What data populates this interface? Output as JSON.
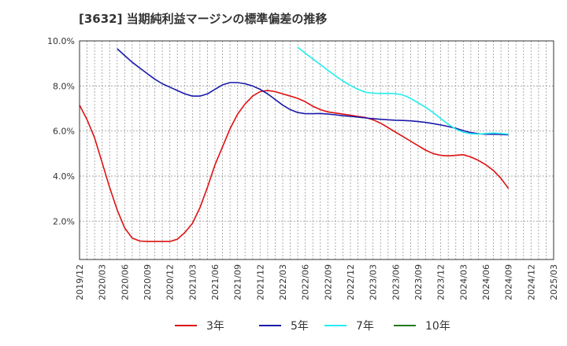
{
  "chart_data": {
    "type": "line",
    "title": "[3632]  当期純利益マージンの標準偏差の推移",
    "xlabel": "",
    "ylabel": "",
    "ylim": [
      0.3,
      10.0
    ],
    "y_ticks": [
      {
        "value": 2.0,
        "label": "2.0%"
      },
      {
        "value": 4.0,
        "label": "4.0%"
      },
      {
        "value": 6.0,
        "label": "6.0%"
      },
      {
        "value": 8.0,
        "label": "8.0%"
      },
      {
        "value": 10.0,
        "label": "10.0%"
      }
    ],
    "x_ticks": [
      "2019/12",
      "2020/03",
      "2020/06",
      "2020/09",
      "2020/12",
      "2021/03",
      "2021/06",
      "2021/09",
      "2021/12",
      "2022/03",
      "2022/06",
      "2022/09",
      "2022/12",
      "2023/03",
      "2023/06",
      "2023/09",
      "2023/12",
      "2024/03",
      "2024/06",
      "2024/09",
      "2024/12",
      "2025/03"
    ],
    "grid": true,
    "legend_position": "bottom",
    "series": [
      {
        "name": "3年",
        "color": "#dd1111",
        "points": [
          [
            "2019/12",
            7.15
          ],
          [
            "2020/01",
            6.5
          ],
          [
            "2020/02",
            5.7
          ],
          [
            "2020/03",
            4.6
          ],
          [
            "2020/04",
            3.5
          ],
          [
            "2020/05",
            2.5
          ],
          [
            "2020/06",
            1.7
          ],
          [
            "2020/07",
            1.25
          ],
          [
            "2020/08",
            1.12
          ],
          [
            "2020/09",
            1.1
          ],
          [
            "2020/10",
            1.1
          ],
          [
            "2020/11",
            1.1
          ],
          [
            "2020/12",
            1.1
          ],
          [
            "2021/01",
            1.2
          ],
          [
            "2021/02",
            1.5
          ],
          [
            "2021/03",
            1.9
          ],
          [
            "2021/04",
            2.6
          ],
          [
            "2021/05",
            3.5
          ],
          [
            "2021/06",
            4.5
          ],
          [
            "2021/07",
            5.3
          ],
          [
            "2021/08",
            6.1
          ],
          [
            "2021/09",
            6.75
          ],
          [
            "2021/10",
            7.2
          ],
          [
            "2021/11",
            7.55
          ],
          [
            "2021/12",
            7.75
          ],
          [
            "2022/01",
            7.8
          ],
          [
            "2022/02",
            7.75
          ],
          [
            "2022/03",
            7.65
          ],
          [
            "2022/04",
            7.55
          ],
          [
            "2022/05",
            7.45
          ],
          [
            "2022/06",
            7.3
          ],
          [
            "2022/07",
            7.1
          ],
          [
            "2022/08",
            6.95
          ],
          [
            "2022/09",
            6.85
          ],
          [
            "2022/10",
            6.8
          ],
          [
            "2022/11",
            6.75
          ],
          [
            "2022/12",
            6.7
          ],
          [
            "2023/01",
            6.65
          ],
          [
            "2023/02",
            6.6
          ],
          [
            "2023/03",
            6.5
          ],
          [
            "2023/04",
            6.35
          ],
          [
            "2023/05",
            6.15
          ],
          [
            "2023/06",
            5.95
          ],
          [
            "2023/07",
            5.75
          ],
          [
            "2023/08",
            5.55
          ],
          [
            "2023/09",
            5.35
          ],
          [
            "2023/10",
            5.15
          ],
          [
            "2023/11",
            5.0
          ],
          [
            "2023/12",
            4.92
          ],
          [
            "2024/01",
            4.9
          ],
          [
            "2024/02",
            4.92
          ],
          [
            "2024/03",
            4.95
          ],
          [
            "2024/04",
            4.85
          ],
          [
            "2024/05",
            4.7
          ],
          [
            "2024/06",
            4.5
          ],
          [
            "2024/07",
            4.25
          ],
          [
            "2024/08",
            3.9
          ],
          [
            "2024/09",
            3.45
          ]
        ]
      },
      {
        "name": "5年",
        "color": "#1a1aaa",
        "points": [
          [
            "2020/05",
            9.65
          ],
          [
            "2020/06",
            9.35
          ],
          [
            "2020/07",
            9.05
          ],
          [
            "2020/08",
            8.8
          ],
          [
            "2020/09",
            8.55
          ],
          [
            "2020/10",
            8.3
          ],
          [
            "2020/11",
            8.1
          ],
          [
            "2020/12",
            7.95
          ],
          [
            "2021/01",
            7.8
          ],
          [
            "2021/02",
            7.65
          ],
          [
            "2021/03",
            7.55
          ],
          [
            "2021/04",
            7.55
          ],
          [
            "2021/05",
            7.65
          ],
          [
            "2021/06",
            7.85
          ],
          [
            "2021/07",
            8.05
          ],
          [
            "2021/08",
            8.15
          ],
          [
            "2021/09",
            8.15
          ],
          [
            "2021/10",
            8.1
          ],
          [
            "2021/11",
            8.0
          ],
          [
            "2021/12",
            7.85
          ],
          [
            "2022/01",
            7.65
          ],
          [
            "2022/02",
            7.4
          ],
          [
            "2022/03",
            7.15
          ],
          [
            "2022/04",
            6.95
          ],
          [
            "2022/05",
            6.82
          ],
          [
            "2022/06",
            6.77
          ],
          [
            "2022/07",
            6.77
          ],
          [
            "2022/08",
            6.78
          ],
          [
            "2022/09",
            6.75
          ],
          [
            "2022/10",
            6.72
          ],
          [
            "2022/11",
            6.68
          ],
          [
            "2022/12",
            6.65
          ],
          [
            "2023/01",
            6.62
          ],
          [
            "2023/02",
            6.58
          ],
          [
            "2023/03",
            6.55
          ],
          [
            "2023/04",
            6.52
          ],
          [
            "2023/05",
            6.5
          ],
          [
            "2023/06",
            6.48
          ],
          [
            "2023/07",
            6.47
          ],
          [
            "2023/08",
            6.45
          ],
          [
            "2023/09",
            6.42
          ],
          [
            "2023/10",
            6.38
          ],
          [
            "2023/11",
            6.33
          ],
          [
            "2023/12",
            6.27
          ],
          [
            "2024/01",
            6.2
          ],
          [
            "2024/02",
            6.12
          ],
          [
            "2024/03",
            6.02
          ],
          [
            "2024/04",
            5.93
          ],
          [
            "2024/05",
            5.88
          ],
          [
            "2024/06",
            5.86
          ],
          [
            "2024/07",
            5.86
          ],
          [
            "2024/08",
            5.85
          ],
          [
            "2024/09",
            5.83
          ]
        ]
      },
      {
        "name": "7年",
        "color": "#22eeee",
        "points": [
          [
            "2022/05",
            9.72
          ],
          [
            "2022/06",
            9.45
          ],
          [
            "2022/07",
            9.2
          ],
          [
            "2022/08",
            8.95
          ],
          [
            "2022/09",
            8.7
          ],
          [
            "2022/10",
            8.45
          ],
          [
            "2022/11",
            8.22
          ],
          [
            "2022/12",
            8.02
          ],
          [
            "2023/01",
            7.85
          ],
          [
            "2023/02",
            7.72
          ],
          [
            "2023/03",
            7.68
          ],
          [
            "2023/04",
            7.67
          ],
          [
            "2023/05",
            7.67
          ],
          [
            "2023/06",
            7.66
          ],
          [
            "2023/07",
            7.6
          ],
          [
            "2023/08",
            7.45
          ],
          [
            "2023/09",
            7.25
          ],
          [
            "2023/10",
            7.05
          ],
          [
            "2023/11",
            6.82
          ],
          [
            "2023/12",
            6.55
          ],
          [
            "2024/01",
            6.3
          ],
          [
            "2024/02",
            6.08
          ],
          [
            "2024/03",
            5.95
          ],
          [
            "2024/04",
            5.88
          ],
          [
            "2024/05",
            5.87
          ],
          [
            "2024/06",
            5.89
          ],
          [
            "2024/07",
            5.91
          ],
          [
            "2024/08",
            5.89
          ],
          [
            "2024/09",
            5.86
          ]
        ]
      },
      {
        "name": "10年",
        "color": "#1f7a1f",
        "points": []
      }
    ]
  }
}
